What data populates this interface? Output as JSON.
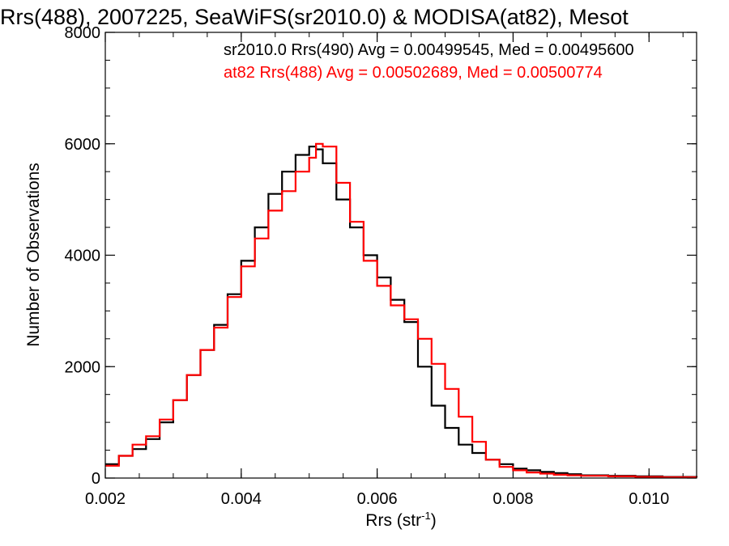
{
  "chart_data": {
    "type": "line",
    "title": "Rrs(488), 2007225, SeaWiFS(sr2010.0) & MODISA(at82), Mesot",
    "xlabel": "Rrs (str",
    "xlabel_sup": "-1",
    "xlabel_end": ")",
    "ylabel": "Number of Observations",
    "xlim": [
      0.002,
      0.0107
    ],
    "ylim": [
      0,
      8000
    ],
    "xticks": [
      0.002,
      0.004,
      0.006,
      0.008,
      0.01
    ],
    "xtick_labels": [
      "0.002",
      "0.004",
      "0.006",
      "0.008",
      "0.010"
    ],
    "yticks": [
      0,
      2000,
      4000,
      6000,
      8000
    ],
    "ytick_labels": [
      "0",
      "2000",
      "4000",
      "6000",
      "8000"
    ],
    "step_style": "histogram",
    "series": [
      {
        "name": "sr2010.0 Rrs(490) Avg = 0.00499545, Med = 0.00495600",
        "color": "#000000",
        "points": [
          [
            0.002,
            250
          ],
          [
            0.0022,
            400
          ],
          [
            0.0024,
            520
          ],
          [
            0.0026,
            700
          ],
          [
            0.0028,
            1000
          ],
          [
            0.003,
            1400
          ],
          [
            0.0032,
            1850
          ],
          [
            0.0034,
            2300
          ],
          [
            0.0036,
            2750
          ],
          [
            0.0038,
            3300
          ],
          [
            0.004,
            3900
          ],
          [
            0.0042,
            4500
          ],
          [
            0.0044,
            5100
          ],
          [
            0.0046,
            5500
          ],
          [
            0.0048,
            5800
          ],
          [
            0.005,
            5950
          ],
          [
            0.0051,
            5900
          ],
          [
            0.0052,
            5650
          ],
          [
            0.0054,
            5000
          ],
          [
            0.0056,
            4500
          ],
          [
            0.0058,
            4000
          ],
          [
            0.006,
            3600
          ],
          [
            0.0062,
            3200
          ],
          [
            0.0064,
            2800
          ],
          [
            0.0066,
            2000
          ],
          [
            0.0068,
            1300
          ],
          [
            0.007,
            900
          ],
          [
            0.0072,
            600
          ],
          [
            0.0074,
            450
          ],
          [
            0.0076,
            330
          ],
          [
            0.0078,
            250
          ],
          [
            0.008,
            170
          ],
          [
            0.0082,
            140
          ],
          [
            0.0084,
            110
          ],
          [
            0.0086,
            90
          ],
          [
            0.0088,
            70
          ],
          [
            0.009,
            50
          ],
          [
            0.0094,
            40
          ],
          [
            0.0098,
            30
          ],
          [
            0.0102,
            20
          ],
          [
            0.0107,
            10
          ]
        ]
      },
      {
        "name": "at82 Rrs(488) Avg = 0.00502689, Med = 0.00500774",
        "color": "#ff0000",
        "points": [
          [
            0.002,
            220
          ],
          [
            0.0022,
            400
          ],
          [
            0.0024,
            600
          ],
          [
            0.0026,
            750
          ],
          [
            0.0028,
            1050
          ],
          [
            0.003,
            1400
          ],
          [
            0.0032,
            1850
          ],
          [
            0.0034,
            2300
          ],
          [
            0.0036,
            2700
          ],
          [
            0.0038,
            3250
          ],
          [
            0.004,
            3800
          ],
          [
            0.0042,
            4300
          ],
          [
            0.0044,
            4800
          ],
          [
            0.0046,
            5150
          ],
          [
            0.0048,
            5500
          ],
          [
            0.005,
            5750
          ],
          [
            0.0051,
            6000
          ],
          [
            0.0052,
            5950
          ],
          [
            0.0054,
            5300
          ],
          [
            0.0056,
            4600
          ],
          [
            0.0058,
            3900
          ],
          [
            0.006,
            3450
          ],
          [
            0.0062,
            3100
          ],
          [
            0.0064,
            2850
          ],
          [
            0.0066,
            2500
          ],
          [
            0.0068,
            2050
          ],
          [
            0.007,
            1600
          ],
          [
            0.0072,
            1100
          ],
          [
            0.0074,
            650
          ],
          [
            0.0076,
            330
          ],
          [
            0.0078,
            200
          ],
          [
            0.008,
            140
          ],
          [
            0.0082,
            100
          ],
          [
            0.0084,
            80
          ],
          [
            0.0086,
            60
          ],
          [
            0.0088,
            50
          ],
          [
            0.009,
            40
          ],
          [
            0.0094,
            30
          ],
          [
            0.0098,
            20
          ],
          [
            0.0102,
            15
          ],
          [
            0.0107,
            10
          ]
        ]
      }
    ],
    "legend_placement": "top-right",
    "grid": false
  }
}
